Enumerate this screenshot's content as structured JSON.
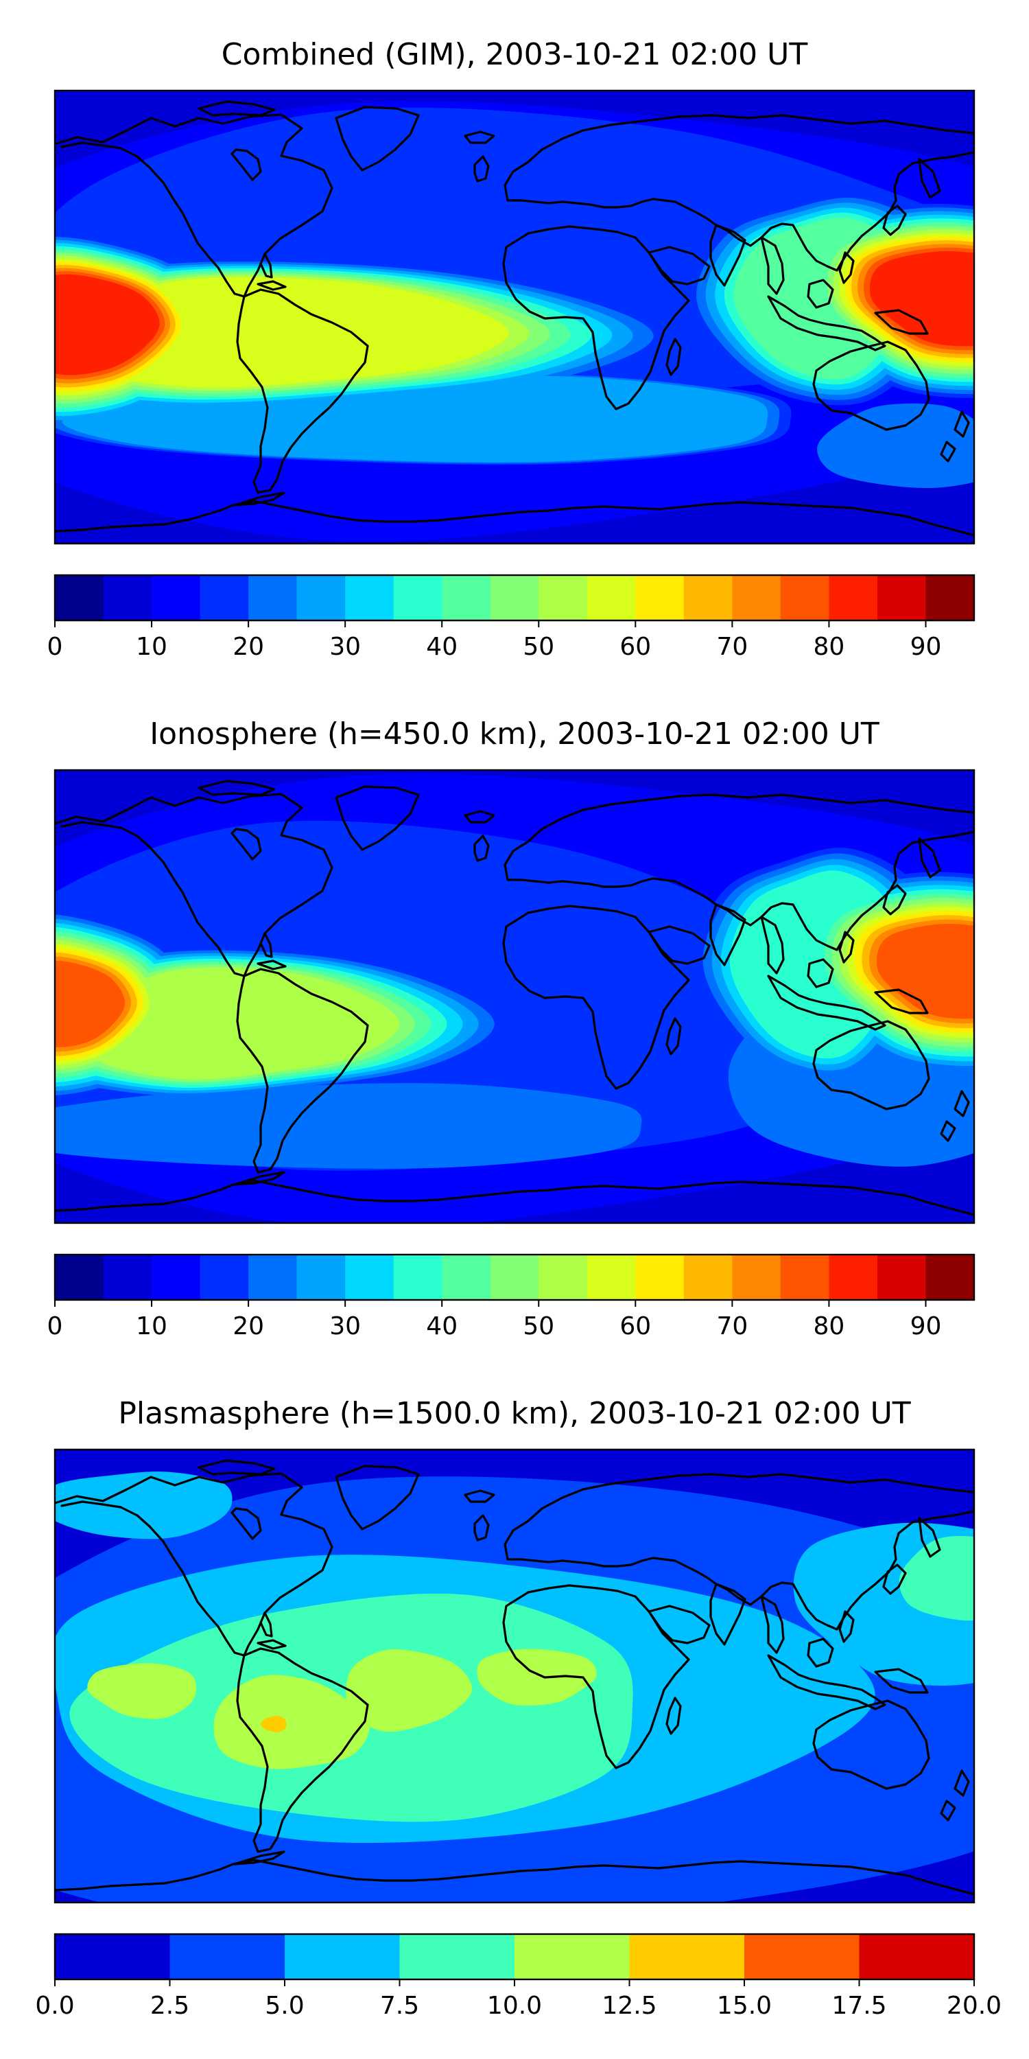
{
  "figure": {
    "panels": [
      {
        "id": "combined",
        "title": "Combined (GIM), 2003-10-21 02:00 UT",
        "colorbar": {
          "colors": [
            "#00008e",
            "#0000d6",
            "#0000ff",
            "#0030ff",
            "#0070ff",
            "#00a4ff",
            "#00d8ff",
            "#2affd0",
            "#54ffa0",
            "#82ff74",
            "#aeff48",
            "#d8ff1c",
            "#ffec00",
            "#ffb800",
            "#ff8600",
            "#ff5400",
            "#ff2000",
            "#d80000",
            "#8e0000"
          ],
          "min": 0,
          "max": 95,
          "ticks": [
            0,
            10,
            20,
            30,
            40,
            50,
            60,
            70,
            80,
            90
          ],
          "tick_labels": [
            "0",
            "10",
            "20",
            "30",
            "40",
            "50",
            "60",
            "70",
            "80",
            "90"
          ]
        },
        "contour_levels": [
          {
            "level": 5,
            "color": "#0000d6"
          },
          {
            "level": 10,
            "color": "#0000ff"
          },
          {
            "level": 15,
            "color": "#0030ff"
          },
          {
            "level": 20,
            "color": "#0070ff"
          },
          {
            "level": 25,
            "color": "#00a4ff"
          },
          {
            "level": 30,
            "color": "#00d8ff"
          },
          {
            "level": 35,
            "color": "#2affd0"
          },
          {
            "level": 40,
            "color": "#54ffa0"
          },
          {
            "level": 45,
            "color": "#82ff74"
          },
          {
            "level": 50,
            "color": "#aeff48"
          },
          {
            "level": 55,
            "color": "#d8ff1c"
          },
          {
            "level": 60,
            "color": "#ffec00"
          },
          {
            "level": 65,
            "color": "#ffb800"
          },
          {
            "level": 70,
            "color": "#ff8600"
          },
          {
            "level": 75,
            "color": "#ff5400"
          },
          {
            "level": 80,
            "color": "#ff2000"
          }
        ]
      },
      {
        "id": "ionosphere",
        "title": "Ionosphere  (h=450.0 km), 2003-10-21 02:00 UT",
        "colorbar": {
          "colors": [
            "#00008e",
            "#0000d6",
            "#0000ff",
            "#0030ff",
            "#0070ff",
            "#00a4ff",
            "#00d8ff",
            "#2affd0",
            "#54ffa0",
            "#82ff74",
            "#aeff48",
            "#d8ff1c",
            "#ffec00",
            "#ffb800",
            "#ff8600",
            "#ff5400",
            "#ff2000",
            "#d80000",
            "#8e0000"
          ],
          "min": 0,
          "max": 95,
          "ticks": [
            0,
            10,
            20,
            30,
            40,
            50,
            60,
            70,
            80,
            90
          ],
          "tick_labels": [
            "0",
            "10",
            "20",
            "30",
            "40",
            "50",
            "60",
            "70",
            "80",
            "90"
          ]
        },
        "contour_levels": [
          {
            "level": 5,
            "color": "#0000d6"
          },
          {
            "level": 10,
            "color": "#0000ff"
          },
          {
            "level": 15,
            "color": "#0030ff"
          },
          {
            "level": 20,
            "color": "#0070ff"
          },
          {
            "level": 25,
            "color": "#00a4ff"
          },
          {
            "level": 30,
            "color": "#00d8ff"
          },
          {
            "level": 35,
            "color": "#2affd0"
          },
          {
            "level": 40,
            "color": "#54ffa0"
          },
          {
            "level": 45,
            "color": "#82ff74"
          },
          {
            "level": 50,
            "color": "#aeff48"
          },
          {
            "level": 55,
            "color": "#d8ff1c"
          },
          {
            "level": 60,
            "color": "#ffec00"
          },
          {
            "level": 65,
            "color": "#ffb800"
          },
          {
            "level": 70,
            "color": "#ff8600"
          },
          {
            "level": 75,
            "color": "#ff5400"
          }
        ]
      },
      {
        "id": "plasmasphere",
        "title": "Plasmasphere (h=1500.0 km), 2003-10-21 02:00 UT",
        "colorbar": {
          "colors": [
            "#0000d6",
            "#0046ff",
            "#00c0ff",
            "#40ffb8",
            "#b0ff48",
            "#ffcc00",
            "#ff5a00",
            "#d80000"
          ],
          "min": 0,
          "max": 20,
          "ticks": [
            0,
            2.5,
            5,
            7.5,
            10,
            12.5,
            15,
            17.5,
            20
          ],
          "tick_labels": [
            "0.0",
            "2.5",
            "5.0",
            "7.5",
            "10.0",
            "12.5",
            "15.0",
            "17.5",
            "20.0"
          ]
        },
        "contour_levels": [
          {
            "level": 2.5,
            "color": "#0046ff"
          },
          {
            "level": 5,
            "color": "#00c0ff"
          },
          {
            "level": 7.5,
            "color": "#40ffb8"
          },
          {
            "level": 10,
            "color": "#b0ff48"
          },
          {
            "level": 12.5,
            "color": "#ffcc00"
          }
        ]
      }
    ]
  }
}
